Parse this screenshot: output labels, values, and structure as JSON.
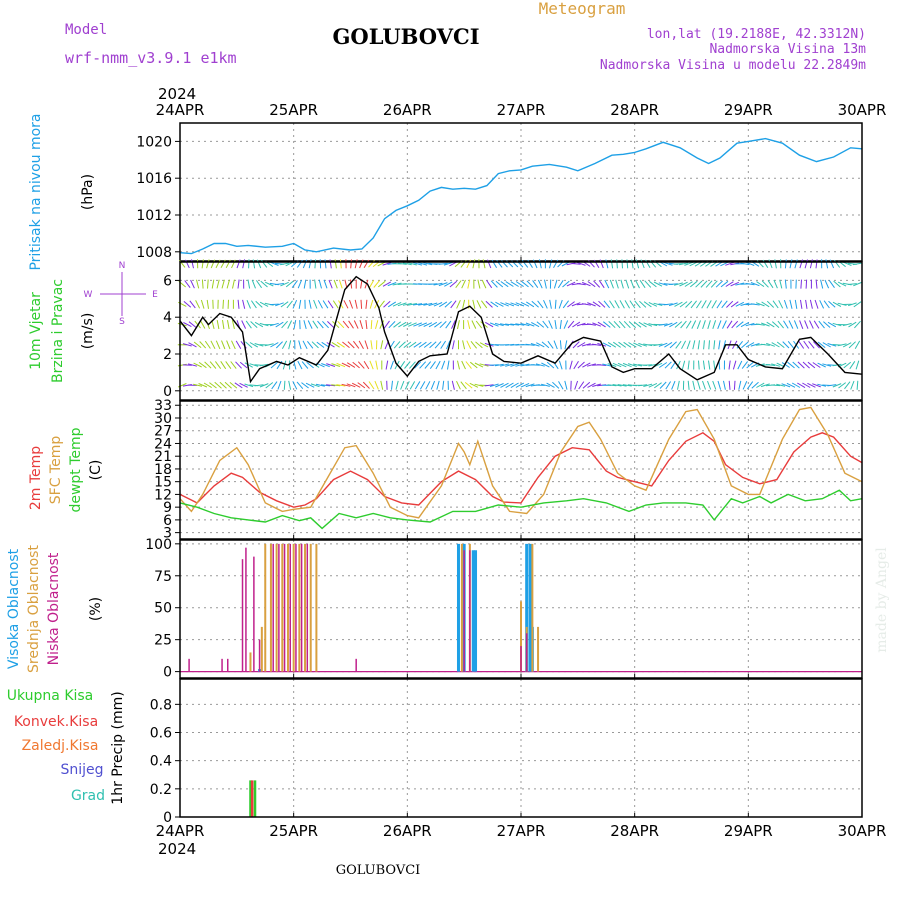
{
  "header": {
    "model_label": "Model",
    "model_name": "wrf-nmm_v3.9.1 e1km",
    "station": "GOLUBOVCI",
    "product": "Meteogram",
    "lonlat": "lon,lat (19.2188E, 42.3312N)",
    "elevation": "Nadmorska Visina 13m",
    "model_elevation": "Nadmorska Visina u modelu 22.2849m",
    "year_top": "2024",
    "year_bottom": "2024",
    "footer_station": "GOLUBOVCI",
    "credit": "made by Angel"
  },
  "colors": {
    "pressure": "#1ea0e6",
    "wind_speed": "#000000",
    "temp2m": "#e83c3c",
    "sfc_temp": "#d9a040",
    "dewpoint": "#2ecc2e",
    "high_cloud": "#1ea0e6",
    "mid_cloud": "#d9a040",
    "low_cloud": "#c0208c",
    "total_precip": "#2ecc2e",
    "conv_precip": "#e83c3c",
    "freezing_precip": "#f07830",
    "snow": "#5050d0",
    "hail": "#30c0b0",
    "grid": "#999999"
  },
  "chart_data": [
    {
      "type": "line",
      "panel": "pressure",
      "labels": [
        "Pritisak na nivou mora",
        "(hPa)"
      ],
      "x_ticks": [
        "24APR",
        "25APR",
        "26APR",
        "27APR",
        "28APR",
        "29APR",
        "30APR"
      ],
      "x_unit": "days since 24APR 2024 00UTC",
      "ylim": [
        1007,
        1022
      ],
      "yticks": [
        1008,
        1012,
        1016,
        1020
      ],
      "series": [
        {
          "name": "Pritisak na nivou mora",
          "x": [
            0,
            0.1,
            0.2,
            0.3,
            0.4,
            0.5,
            0.6,
            0.75,
            0.9,
            1.0,
            1.1,
            1.2,
            1.35,
            1.5,
            1.6,
            1.7,
            1.8,
            1.9,
            2.0,
            2.1,
            2.2,
            2.3,
            2.4,
            2.5,
            2.6,
            2.7,
            2.8,
            2.9,
            3.0,
            3.1,
            3.25,
            3.4,
            3.5,
            3.65,
            3.8,
            3.9,
            4.0,
            4.1,
            4.25,
            4.4,
            4.55,
            4.65,
            4.75,
            4.9,
            5.0,
            5.15,
            5.3,
            5.45,
            5.6,
            5.75,
            5.9,
            6.0
          ],
          "values": [
            1007.9,
            1007.8,
            1008.3,
            1008.9,
            1008.9,
            1008.6,
            1008.7,
            1008.5,
            1008.6,
            1008.9,
            1008.2,
            1008.0,
            1008.4,
            1008.2,
            1008.3,
            1009.5,
            1011.6,
            1012.5,
            1013.0,
            1013.6,
            1014.6,
            1015.0,
            1014.8,
            1014.9,
            1014.8,
            1015.2,
            1016.5,
            1016.8,
            1016.9,
            1017.3,
            1017.5,
            1017.2,
            1016.8,
            1017.6,
            1018.5,
            1018.6,
            1018.8,
            1019.2,
            1019.9,
            1019.3,
            1018.2,
            1017.6,
            1018.2,
            1019.8,
            1020.0,
            1020.3,
            1019.8,
            1018.5,
            1017.8,
            1018.3,
            1019.3,
            1019.2
          ]
        }
      ]
    },
    {
      "type": "line",
      "panel": "wind",
      "labels": [
        "10m Vjetar",
        "Brzina i Pravac",
        "(m/s)"
      ],
      "compass": [
        "N",
        "W",
        "E",
        "S"
      ],
      "x_unit": "days since 24APR 2024 00UTC",
      "ylim": [
        -0.5,
        7
      ],
      "yticks": [
        0,
        2,
        4,
        6
      ],
      "series": [
        {
          "name": "10m Vjetar",
          "x": [
            0,
            0.1,
            0.2,
            0.25,
            0.35,
            0.45,
            0.55,
            0.62,
            0.7,
            0.85,
            0.95,
            1.05,
            1.2,
            1.3,
            1.45,
            1.55,
            1.65,
            1.75,
            1.8,
            1.9,
            2.0,
            2.1,
            2.2,
            2.35,
            2.45,
            2.55,
            2.65,
            2.75,
            2.85,
            3.0,
            3.15,
            3.3,
            3.45,
            3.55,
            3.7,
            3.8,
            3.9,
            4.0,
            4.15,
            4.3,
            4.4,
            4.55,
            4.7,
            4.8,
            4.9,
            5.0,
            5.15,
            5.3,
            5.45,
            5.55,
            5.7,
            5.85,
            6.0
          ],
          "values": [
            3.8,
            3.0,
            4.0,
            3.6,
            4.2,
            4.0,
            3.2,
            0.5,
            1.2,
            1.6,
            1.4,
            1.8,
            1.4,
            2.2,
            5.5,
            6.2,
            5.8,
            4.5,
            3.2,
            1.5,
            0.8,
            1.6,
            1.9,
            2.0,
            4.3,
            4.6,
            4.0,
            2.0,
            1.6,
            1.5,
            1.9,
            1.5,
            2.6,
            2.9,
            2.7,
            1.3,
            1.0,
            1.2,
            1.2,
            2.0,
            1.2,
            0.6,
            1.0,
            2.5,
            2.5,
            1.7,
            1.3,
            1.2,
            2.8,
            2.9,
            2.0,
            1.0,
            0.9
          ]
        }
      ]
    },
    {
      "type": "line",
      "panel": "temperature",
      "labels": [
        "2m Temp",
        "SFC Temp",
        "dewpt Temp",
        "(C)"
      ],
      "x_unit": "days since 24APR 2024 00UTC",
      "ylim": [
        1.5,
        34
      ],
      "yticks": [
        3,
        6,
        9,
        12,
        15,
        18,
        21,
        24,
        27,
        30,
        33
      ],
      "series": [
        {
          "name": "2m Temp",
          "x": [
            0,
            0.15,
            0.3,
            0.45,
            0.55,
            0.7,
            0.85,
            1.0,
            1.1,
            1.2,
            1.35,
            1.5,
            1.65,
            1.8,
            1.95,
            2.1,
            2.3,
            2.45,
            2.6,
            2.75,
            2.85,
            3.0,
            3.15,
            3.3,
            3.45,
            3.6,
            3.75,
            3.85,
            4.0,
            4.15,
            4.3,
            4.45,
            4.6,
            4.7,
            4.8,
            4.95,
            5.1,
            5.25,
            5.4,
            5.55,
            5.65,
            5.75,
            5.9,
            6.0
          ],
          "values": [
            12,
            10,
            14,
            17,
            16,
            12.5,
            10.5,
            9,
            9.5,
            11,
            15.5,
            17.5,
            15.5,
            11.5,
            10,
            9.5,
            15,
            17.5,
            15.5,
            11.5,
            10.2,
            10,
            16,
            21,
            23,
            22.5,
            17.5,
            16,
            15,
            14,
            20,
            24.5,
            26.5,
            24.5,
            19,
            16,
            14.5,
            15.5,
            22,
            25.5,
            26.5,
            25.5,
            21,
            19.5
          ]
        },
        {
          "name": "SFC Temp",
          "x": [
            0,
            0.1,
            0.2,
            0.35,
            0.5,
            0.6,
            0.75,
            0.9,
            1.0,
            1.15,
            1.3,
            1.45,
            1.55,
            1.7,
            1.85,
            2.0,
            2.1,
            2.3,
            2.45,
            2.5,
            2.55,
            2.62,
            2.75,
            2.9,
            3.05,
            3.2,
            3.35,
            3.5,
            3.6,
            3.7,
            3.85,
            4.0,
            4.1,
            4.3,
            4.45,
            4.55,
            4.7,
            4.85,
            5.0,
            5.1,
            5.3,
            5.45,
            5.55,
            5.7,
            5.85,
            6.0
          ],
          "values": [
            11,
            8,
            12,
            20,
            23,
            19,
            10,
            8,
            8.5,
            9,
            16,
            23,
            23.5,
            17,
            9,
            7,
            6.5,
            14,
            24,
            22,
            19,
            24.5,
            14,
            8,
            7.5,
            12,
            22,
            28,
            29,
            25,
            17,
            14,
            13,
            25,
            31.5,
            32,
            25,
            14,
            12,
            12,
            25,
            32,
            32.5,
            26,
            17,
            15
          ]
        },
        {
          "name": "dewpt Temp",
          "x": [
            0,
            0.15,
            0.3,
            0.45,
            0.6,
            0.75,
            0.9,
            1.05,
            1.15,
            1.25,
            1.4,
            1.55,
            1.7,
            1.85,
            2.0,
            2.2,
            2.4,
            2.6,
            2.8,
            3.0,
            3.2,
            3.4,
            3.55,
            3.75,
            3.95,
            4.1,
            4.25,
            4.45,
            4.6,
            4.7,
            4.85,
            4.95,
            5.1,
            5.2,
            5.35,
            5.5,
            5.65,
            5.8,
            5.9,
            6.0
          ],
          "values": [
            10,
            9,
            7.5,
            6.5,
            6,
            5.5,
            7,
            5.8,
            6.5,
            4,
            7.5,
            6.5,
            7.5,
            6.5,
            6,
            5.5,
            8,
            8,
            9.5,
            9,
            10,
            10.5,
            11,
            10,
            8,
            9.5,
            10,
            10,
            9.5,
            6,
            11,
            10,
            11.5,
            10,
            12,
            10.5,
            11,
            13,
            10.5,
            11
          ]
        }
      ]
    },
    {
      "type": "bar",
      "panel": "clouds",
      "labels": [
        "Visoka Oblacnost",
        "Srednja Oblacnost",
        "Niska Oblacnost",
        "(%)"
      ],
      "x_unit": "days since 24APR 2024 00UTC",
      "ylim": [
        -5,
        103
      ],
      "yticks": [
        0,
        25,
        50,
        75,
        100
      ],
      "series": [
        {
          "name": "Visoka Oblacnost",
          "x": [
            0.7,
            2.45,
            2.5,
            2.58,
            2.6,
            3.05,
            3.08,
            3.1
          ],
          "values": [
            2,
            100,
            100,
            95,
            95,
            100,
            100,
            35
          ]
        },
        {
          "name": "Srednja Oblacnost",
          "x": [
            0.62,
            0.72,
            0.75,
            0.8,
            0.85,
            0.9,
            0.95,
            1.0,
            1.05,
            1.1,
            1.15,
            1.2,
            2.48,
            2.55,
            3.0,
            3.05,
            3.1,
            3.15
          ],
          "values": [
            15,
            35,
            100,
            100,
            100,
            100,
            100,
            100,
            100,
            100,
            100,
            100,
            100,
            100,
            55,
            35,
            100,
            35
          ]
        },
        {
          "name": "Niska Oblacnost",
          "x": [
            0.08,
            0.37,
            0.42,
            0.55,
            0.58,
            0.65,
            0.7,
            0.82,
            0.87,
            0.92,
            0.97,
            1.02,
            1.07,
            1.12,
            1.55,
            2.5,
            2.55,
            3.0,
            3.05
          ],
          "values": [
            10,
            10,
            10,
            88,
            97,
            90,
            25,
            100,
            100,
            100,
            100,
            100,
            100,
            100,
            10,
            95,
            95,
            20,
            30
          ]
        }
      ]
    },
    {
      "type": "bar",
      "panel": "precip",
      "labels": [
        "Ukupna Kisa",
        "Konvek.Kisa",
        "Zaledj.Kisa",
        "Snijeg",
        "Grad",
        "1hr Precip (mm)"
      ],
      "x_unit": "days since 24APR 2024 00UTC",
      "ylim": [
        0,
        0.98
      ],
      "yticks": [
        0,
        0.2,
        0.4,
        0.6,
        0.8
      ],
      "series": [
        {
          "name": "Ukupna Kisa",
          "x": [
            0.62,
            0.66
          ],
          "values": [
            0.26,
            0.26
          ]
        },
        {
          "name": "Konvek.Kisa",
          "x": [
            0.635
          ],
          "values": [
            0.26
          ]
        }
      ]
    }
  ]
}
